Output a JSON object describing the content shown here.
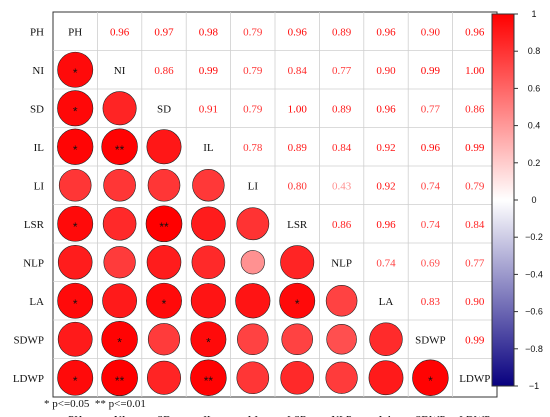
{
  "chart_data": {
    "type": "heatmap",
    "variables": [
      "PH",
      "NI",
      "SD",
      "IL",
      "LI",
      "LSR",
      "NLP",
      "LA",
      "SDWP",
      "LDWP"
    ],
    "matrix": [
      [
        1.0,
        0.96,
        0.97,
        0.98,
        0.79,
        0.96,
        0.89,
        0.96,
        0.9,
        0.96
      ],
      [
        0.96,
        1.0,
        0.86,
        0.99,
        0.79,
        0.84,
        0.77,
        0.9,
        0.99,
        1.0
      ],
      [
        0.97,
        0.86,
        1.0,
        0.91,
        0.79,
        1.0,
        0.89,
        0.96,
        0.77,
        0.86
      ],
      [
        0.98,
        0.99,
        0.91,
        1.0,
        0.78,
        0.89,
        0.84,
        0.92,
        0.96,
        0.99
      ],
      [
        0.79,
        0.79,
        0.79,
        0.78,
        1.0,
        0.8,
        0.43,
        0.92,
        0.74,
        0.79
      ],
      [
        0.96,
        0.84,
        1.0,
        0.89,
        0.8,
        1.0,
        0.86,
        0.96,
        0.74,
        0.84
      ],
      [
        0.89,
        0.77,
        0.89,
        0.84,
        0.43,
        0.86,
        1.0,
        0.74,
        0.69,
        0.77
      ],
      [
        0.96,
        0.9,
        0.96,
        0.92,
        0.92,
        0.96,
        0.74,
        1.0,
        0.83,
        0.9
      ],
      [
        0.9,
        0.99,
        0.77,
        0.96,
        0.74,
        0.74,
        0.69,
        0.83,
        1.0,
        0.99
      ],
      [
        0.96,
        1.0,
        0.86,
        0.99,
        0.79,
        0.84,
        0.77,
        0.9,
        0.99,
        1.0
      ]
    ],
    "value_labels_upper": [
      [
        "",
        "0.96",
        "0.97",
        "0.98",
        "0.79",
        "0.96",
        "0.89",
        "0.96",
        "0.90",
        "0.96"
      ],
      [
        "",
        "",
        "0.86",
        "0.99",
        "0.79",
        "0.84",
        "0.77",
        "0.90",
        "0.99",
        "1.00"
      ],
      [
        "",
        "",
        "",
        "0.91",
        "0.79",
        "1.00",
        "0.89",
        "0.96",
        "0.77",
        "0.86"
      ],
      [
        "",
        "",
        "",
        "",
        "0.78",
        "0.89",
        "0.84",
        "0.92",
        "0.96",
        "0.99"
      ],
      [
        "",
        "",
        "",
        "",
        "",
        "0.80",
        "0.43",
        "0.92",
        "0.74",
        "0.79"
      ],
      [
        "",
        "",
        "",
        "",
        "",
        "",
        "0.86",
        "0.96",
        "0.74",
        "0.84"
      ],
      [
        "",
        "",
        "",
        "",
        "",
        "",
        "",
        "0.74",
        "0.69",
        "0.77"
      ],
      [
        "",
        "",
        "",
        "",
        "",
        "",
        "",
        "",
        "0.83",
        "0.90"
      ],
      [
        "",
        "",
        "",
        "",
        "",
        "",
        "",
        "",
        "",
        "0.99"
      ],
      [
        "",
        "",
        "",
        "",
        "",
        "",
        "",
        "",
        "",
        ""
      ]
    ],
    "significance_lower": [
      [
        "",
        "",
        "",
        "",
        "",
        "",
        "",
        "",
        "",
        ""
      ],
      [
        "*",
        "",
        "",
        "",
        "",
        "",
        "",
        "",
        "",
        ""
      ],
      [
        "*",
        "",
        "",
        "",
        "",
        "",
        "",
        "",
        "",
        ""
      ],
      [
        "*",
        "**",
        "",
        "",
        "",
        "",
        "",
        "",
        "",
        ""
      ],
      [
        "",
        "",
        "",
        "",
        "",
        "",
        "",
        "",
        "",
        ""
      ],
      [
        "*",
        "",
        "**",
        "",
        "",
        "",
        "",
        "",
        "",
        ""
      ],
      [
        "",
        "",
        "",
        "",
        "",
        "",
        "",
        "",
        "",
        ""
      ],
      [
        "*",
        "",
        "*",
        "",
        "",
        "*",
        "",
        "",
        "",
        ""
      ],
      [
        "",
        "*",
        "",
        "*",
        "",
        "",
        "",
        "",
        "",
        ""
      ],
      [
        "*",
        "**",
        "",
        "**",
        "",
        "",
        "",
        "",
        "*",
        ""
      ]
    ],
    "colorbar": {
      "range": [
        -1,
        1
      ],
      "ticks": [
        "1",
        "0.8",
        "0.6",
        "0.4",
        "0.2",
        "0",
        "−0.2",
        "−0.4",
        "−0.6",
        "−0.8",
        "−1"
      ],
      "colors": {
        "negative": "#08007f",
        "zero": "#ffffff",
        "positive": "#ff0000"
      }
    },
    "footnote": "* p<=0.05  ** p<=0.01"
  }
}
